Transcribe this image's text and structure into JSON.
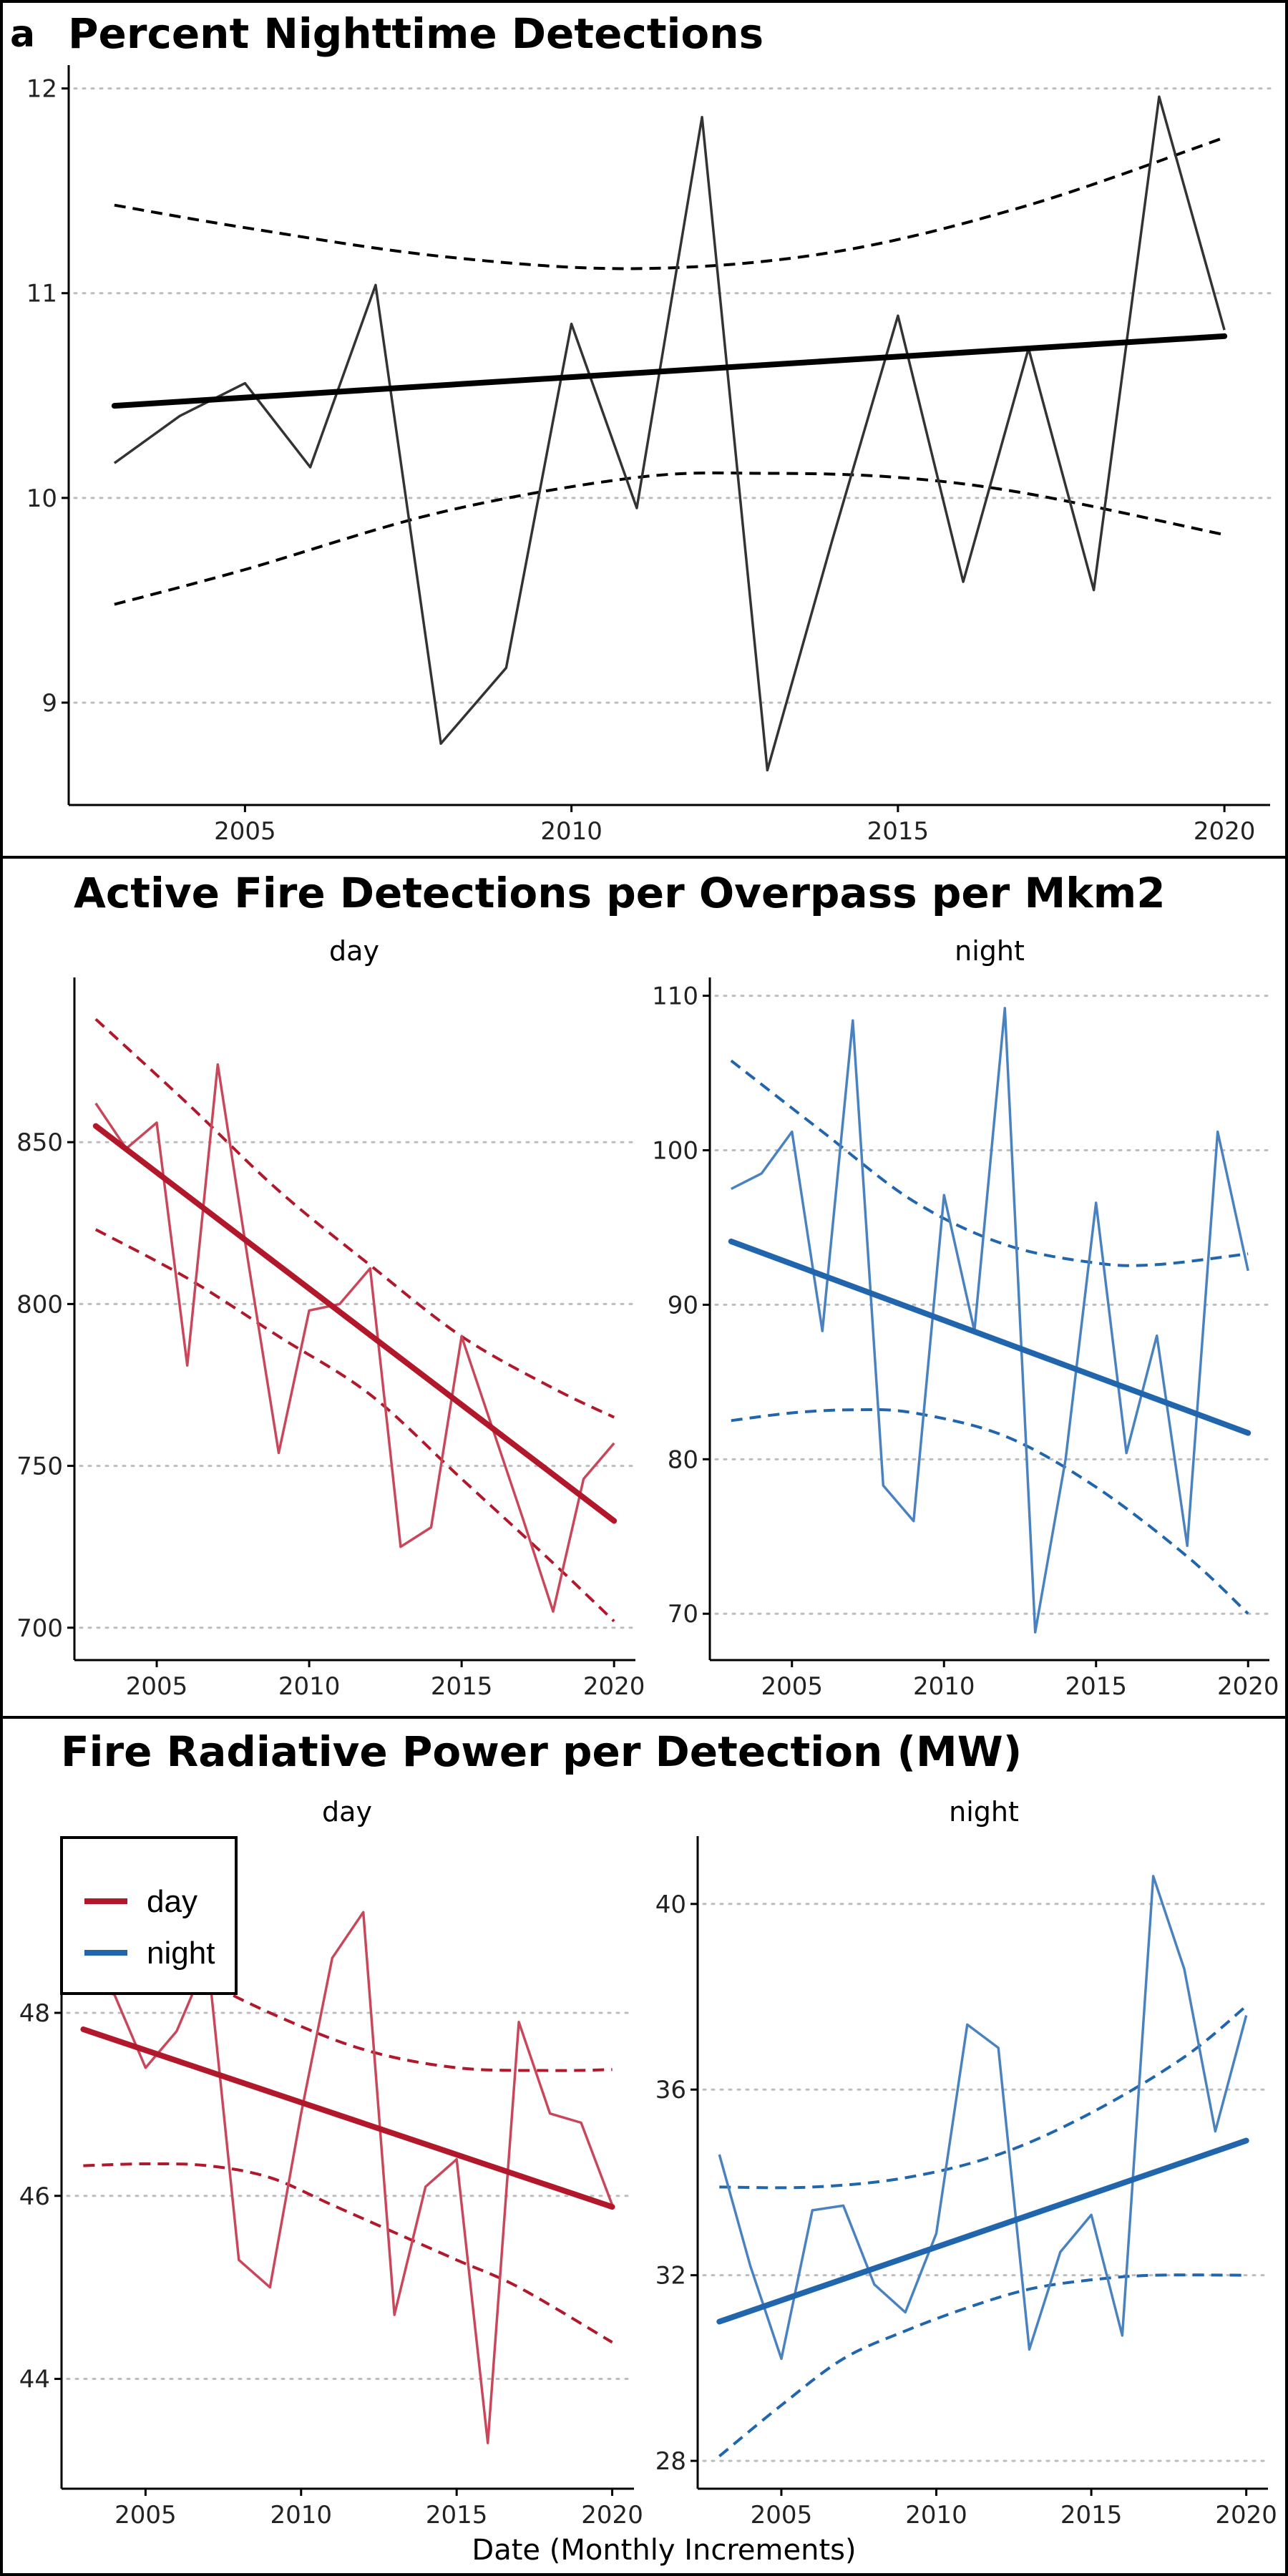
{
  "figure": {
    "panel_letter": "a",
    "x_axis_label": "Date (Monthly Increments)"
  },
  "colors": {
    "overall": "#333333",
    "overall_trend": "#000000",
    "day": "#c8475a",
    "day_trend": "#b2182b",
    "night": "#4a82c0",
    "night_trend": "#2166ac"
  },
  "legend": {
    "placement": "top-left of bottom-left panel",
    "items": [
      {
        "label": "day",
        "color_key": "day_trend"
      },
      {
        "label": "night",
        "color_key": "night_trend"
      }
    ]
  },
  "chart_data": [
    {
      "id": "nighttime_pct",
      "type": "line",
      "title": "Percent Nighttime Detections",
      "xlabel": "",
      "ylabel": "",
      "xlim": [
        2002.3,
        2020.7
      ],
      "ylim": [
        8.5,
        12.1
      ],
      "xticks": [
        2005,
        2010,
        2015,
        2020
      ],
      "yticks": [
        9,
        10,
        11,
        12
      ],
      "grid": "horizontal dotted",
      "color_key": "overall",
      "trend_color_key": "overall_trend",
      "x": [
        2003,
        2004,
        2005,
        2006,
        2007,
        2008,
        2009,
        2010,
        2011,
        2012,
        2013,
        2014,
        2015,
        2016,
        2017,
        2018,
        2019,
        2020
      ],
      "values": [
        10.17,
        10.4,
        10.56,
        10.15,
        11.04,
        8.8,
        9.17,
        10.85,
        9.95,
        11.86,
        8.67,
        9.8,
        10.89,
        9.59,
        10.73,
        9.55,
        11.96,
        10.82
      ],
      "trend": {
        "start": [
          2003,
          10.45
        ],
        "end": [
          2020,
          10.79
        ]
      },
      "ci_upper": [
        [
          2003,
          11.43
        ],
        [
          2005,
          11.32
        ],
        [
          2008,
          11.18
        ],
        [
          2011,
          11.12
        ],
        [
          2014,
          11.2
        ],
        [
          2017,
          11.43
        ],
        [
          2020,
          11.76
        ]
      ],
      "ci_lower": [
        [
          2003,
          9.48
        ],
        [
          2005,
          9.65
        ],
        [
          2008,
          9.93
        ],
        [
          2011,
          10.1
        ],
        [
          2013,
          10.12
        ],
        [
          2015,
          10.1
        ],
        [
          2017,
          10.02
        ],
        [
          2020,
          9.82
        ]
      ]
    },
    {
      "id": "afd_day",
      "type": "line",
      "section_title": "Active Fire Detections per Overpass per Mkm2",
      "strip": "day",
      "xlim": [
        2002.3,
        2020.7
      ],
      "ylim": [
        690,
        900
      ],
      "xticks": [
        2005,
        2010,
        2015,
        2020
      ],
      "yticks": [
        700,
        750,
        800,
        850
      ],
      "grid": "horizontal dotted",
      "color_key": "day",
      "trend_color_key": "day_trend",
      "x": [
        2003,
        2004,
        2005,
        2006,
        2007,
        2008,
        2009,
        2010,
        2011,
        2012,
        2013,
        2014,
        2015,
        2016,
        2017,
        2018,
        2019,
        2020
      ],
      "values": [
        862,
        848,
        856,
        781,
        874,
        813,
        754,
        798,
        800,
        811,
        725,
        731,
        790,
        762,
        734,
        705,
        746,
        757
      ],
      "trend": {
        "start": [
          2003,
          855
        ],
        "end": [
          2020,
          733
        ]
      },
      "ci_upper": [
        [
          2003,
          888
        ],
        [
          2006,
          862
        ],
        [
          2009,
          835
        ],
        [
          2012,
          812
        ],
        [
          2015,
          790
        ],
        [
          2018,
          774
        ],
        [
          2020,
          765
        ]
      ],
      "ci_lower": [
        [
          2003,
          823
        ],
        [
          2006,
          808
        ],
        [
          2009,
          790
        ],
        [
          2012,
          772
        ],
        [
          2015,
          746
        ],
        [
          2018,
          720
        ],
        [
          2020,
          702
        ]
      ]
    },
    {
      "id": "afd_night",
      "type": "line",
      "strip": "night",
      "xlim": [
        2002.3,
        2020.7
      ],
      "ylim": [
        67,
        111
      ],
      "xticks": [
        2005,
        2010,
        2015,
        2020
      ],
      "yticks": [
        70,
        80,
        90,
        100,
        110
      ],
      "grid": "horizontal dotted",
      "color_key": "night",
      "trend_color_key": "night_trend",
      "x": [
        2003,
        2004,
        2005,
        2006,
        2007,
        2008,
        2009,
        2010,
        2011,
        2012,
        2013,
        2014,
        2015,
        2016,
        2017,
        2018,
        2019,
        2020
      ],
      "values": [
        97.5,
        98.5,
        101.2,
        88.3,
        108.4,
        78.3,
        76.0,
        97.1,
        88.3,
        109.2,
        68.8,
        80.0,
        96.6,
        80.4,
        88.0,
        74.4,
        101.2,
        92.2
      ],
      "trend": {
        "start": [
          2003,
          94.1
        ],
        "end": [
          2020,
          81.7
        ]
      },
      "ci_upper": [
        [
          2003,
          105.8
        ],
        [
          2006,
          101.2
        ],
        [
          2009,
          96.7
        ],
        [
          2012,
          93.9
        ],
        [
          2015,
          92.7
        ],
        [
          2017,
          92.6
        ],
        [
          2020,
          93.3
        ]
      ],
      "ci_lower": [
        [
          2003,
          82.5
        ],
        [
          2005,
          83.0
        ],
        [
          2007,
          83.2
        ],
        [
          2009,
          83.0
        ],
        [
          2012,
          81.5
        ],
        [
          2015,
          78.2
        ],
        [
          2018,
          73.7
        ],
        [
          2020,
          70.0
        ]
      ]
    },
    {
      "id": "frp_day",
      "type": "line",
      "section_title": "Fire Radiative Power per Detection (MW)",
      "strip": "day",
      "xlim": [
        2002.3,
        2020.7
      ],
      "ylim": [
        42.8,
        49.9
      ],
      "xticks": [
        2005,
        2010,
        2015,
        2020
      ],
      "yticks": [
        44,
        46,
        48
      ],
      "grid": "horizontal dotted",
      "color_key": "day",
      "trend_color_key": "day_trend",
      "x": [
        2003,
        2004,
        2005,
        2006,
        2007,
        2008,
        2009,
        2010,
        2011,
        2012,
        2013,
        2014,
        2015,
        2016,
        2017,
        2018,
        2019,
        2020
      ],
      "values": [
        48.3,
        48.2,
        47.4,
        47.8,
        48.6,
        45.3,
        45.0,
        46.9,
        48.6,
        49.1,
        44.7,
        46.1,
        46.4,
        43.3,
        47.9,
        46.9,
        46.8,
        45.9
      ],
      "trend": {
        "start": [
          2003,
          47.82
        ],
        "end": [
          2020,
          45.88
        ]
      },
      "ci_upper": [
        [
          2003,
          49.0
        ],
        [
          2006,
          48.5
        ],
        [
          2009,
          48.0
        ],
        [
          2012,
          47.6
        ],
        [
          2015,
          47.4
        ],
        [
          2018,
          47.37
        ],
        [
          2020,
          47.38
        ]
      ],
      "ci_lower": [
        [
          2003,
          46.33
        ],
        [
          2005,
          46.35
        ],
        [
          2007,
          46.33
        ],
        [
          2009,
          46.2
        ],
        [
          2011,
          45.9
        ],
        [
          2013,
          45.6
        ],
        [
          2015,
          45.3
        ],
        [
          2017,
          45.0
        ],
        [
          2020,
          44.4
        ]
      ]
    },
    {
      "id": "frp_night",
      "type": "line",
      "strip": "night",
      "xlim": [
        2002.3,
        2020.7
      ],
      "ylim": [
        27.4,
        41.4
      ],
      "xticks": [
        2005,
        2010,
        2015,
        2020
      ],
      "yticks": [
        28,
        32,
        36,
        40
      ],
      "grid": "horizontal dotted",
      "color_key": "night",
      "trend_color_key": "night_trend",
      "x": [
        2003,
        2004,
        2005,
        2006,
        2007,
        2008,
        2009,
        2010,
        2011,
        2012,
        2013,
        2014,
        2015,
        2016,
        2017,
        2018,
        2019,
        2020
      ],
      "values": [
        34.6,
        32.2,
        30.2,
        33.4,
        33.5,
        31.8,
        31.2,
        32.9,
        37.4,
        36.9,
        30.4,
        32.5,
        33.3,
        30.7,
        40.6,
        38.6,
        35.1,
        37.6
      ],
      "trend": {
        "start": [
          2003,
          31.0
        ],
        "end": [
          2020,
          34.9
        ]
      },
      "ci_upper": [
        [
          2003,
          33.9
        ],
        [
          2006,
          33.9
        ],
        [
          2009,
          34.1
        ],
        [
          2012,
          34.6
        ],
        [
          2015,
          35.5
        ],
        [
          2018,
          36.7
        ],
        [
          2020,
          37.8
        ]
      ],
      "ci_lower": [
        [
          2003,
          28.1
        ],
        [
          2005,
          29.2
        ],
        [
          2007,
          30.2
        ],
        [
          2009,
          30.8
        ],
        [
          2011,
          31.3
        ],
        [
          2013,
          31.7
        ],
        [
          2015,
          31.9
        ],
        [
          2017,
          32.0
        ],
        [
          2020,
          32.0
        ]
      ]
    }
  ]
}
